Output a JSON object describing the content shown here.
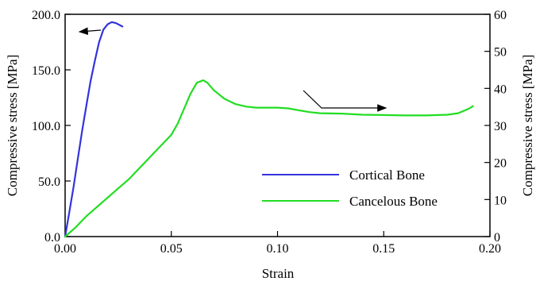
{
  "chart_data": {
    "type": "line",
    "x": {
      "label": "Strain",
      "range": [
        0,
        0.2
      ],
      "ticks": [
        0.0,
        0.05,
        0.1,
        0.15,
        0.2
      ],
      "tick_labels": [
        "0.00",
        "0.05",
        "0.10",
        "0.15",
        "0.20"
      ]
    },
    "y_left": {
      "label": "Compressive stress [MPa]",
      "range": [
        0,
        200
      ],
      "ticks": [
        0,
        50,
        100,
        150,
        200
      ],
      "tick_labels": [
        "0.0",
        "50.0",
        "100.0",
        "150.0",
        "200.0"
      ]
    },
    "y_right": {
      "label": "Compressive stress [MPa]",
      "range": [
        0,
        60
      ],
      "ticks": [
        0,
        10,
        20,
        30,
        40,
        50,
        60
      ],
      "tick_labels": [
        "0",
        "10",
        "20",
        "30",
        "40",
        "50",
        "60"
      ]
    },
    "grid": false,
    "legend_position": "bottom-right",
    "series": [
      {
        "name": "Cortical Bone",
        "axis": "left",
        "color": "#3333dd",
        "points": [
          [
            0.0,
            0
          ],
          [
            0.002,
            22
          ],
          [
            0.004,
            45
          ],
          [
            0.006,
            70
          ],
          [
            0.008,
            95
          ],
          [
            0.01,
            118
          ],
          [
            0.012,
            140
          ],
          [
            0.014,
            158
          ],
          [
            0.016,
            175
          ],
          [
            0.018,
            186
          ],
          [
            0.02,
            191
          ],
          [
            0.022,
            193
          ],
          [
            0.024,
            192
          ],
          [
            0.026,
            190
          ],
          [
            0.027,
            189
          ]
        ]
      },
      {
        "name": "Cancelous Bone",
        "axis": "right",
        "color": "#22dd22",
        "points": [
          [
            0.0,
            0
          ],
          [
            0.005,
            2.5
          ],
          [
            0.01,
            5.5
          ],
          [
            0.015,
            8
          ],
          [
            0.02,
            10.5
          ],
          [
            0.025,
            13
          ],
          [
            0.03,
            15.5
          ],
          [
            0.035,
            18.5
          ],
          [
            0.04,
            21.5
          ],
          [
            0.045,
            24.5
          ],
          [
            0.05,
            27.5
          ],
          [
            0.053,
            30.5
          ],
          [
            0.056,
            34.5
          ],
          [
            0.059,
            38.5
          ],
          [
            0.062,
            41.5
          ],
          [
            0.065,
            42.2
          ],
          [
            0.067,
            41.5
          ],
          [
            0.07,
            39.5
          ],
          [
            0.075,
            37.2
          ],
          [
            0.08,
            35.8
          ],
          [
            0.085,
            35.1
          ],
          [
            0.09,
            34.8
          ],
          [
            0.1,
            34.8
          ],
          [
            0.105,
            34.6
          ],
          [
            0.11,
            34.1
          ],
          [
            0.115,
            33.6
          ],
          [
            0.12,
            33.3
          ],
          [
            0.13,
            33.2
          ],
          [
            0.14,
            32.9
          ],
          [
            0.15,
            32.8
          ],
          [
            0.16,
            32.7
          ],
          [
            0.17,
            32.7
          ],
          [
            0.18,
            32.9
          ],
          [
            0.185,
            33.3
          ],
          [
            0.19,
            34.5
          ],
          [
            0.192,
            35.2
          ]
        ]
      }
    ]
  }
}
